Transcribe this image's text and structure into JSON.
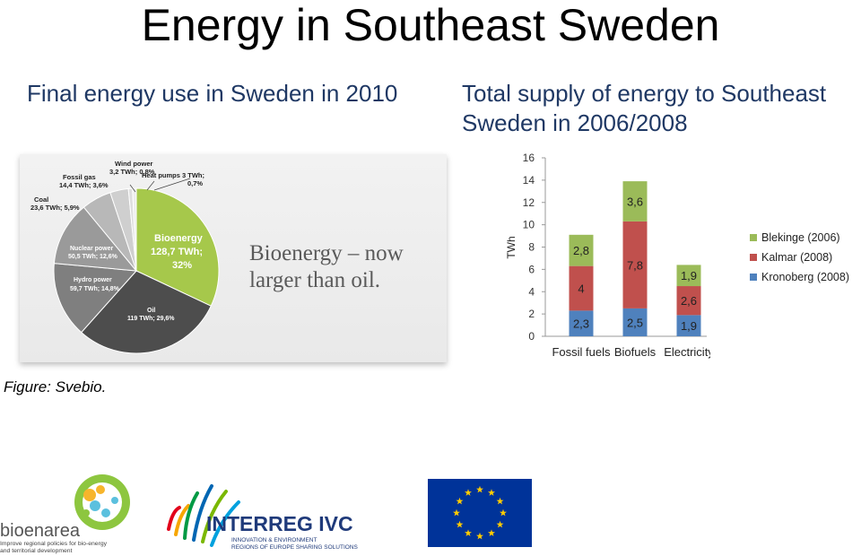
{
  "title": "Energy in Southeast Sweden",
  "left_heading": "Final energy use in Sweden in 2010",
  "right_heading": "Total supply of energy to Southeast Sweden in 2006/2008",
  "pie": {
    "slogan": "Bioenergy – now larger than oil.",
    "labels": {
      "bioenergy_1": "Bioenergy",
      "bioenergy_2": "128,7 TWh;",
      "bioenergy_3": "32%",
      "oil_1": "Oil",
      "oil_2": "119 TWh; 29,6%",
      "hydro_1": "Hydro power",
      "hydro_2": "59,7 TWh; 14,8%",
      "nuclear_1": "Nuclear power",
      "nuclear_2": "50,5 TWh; 12,6%",
      "coal_1": "Coal",
      "coal_2": "23,6 TWh; 5,9%",
      "fossil_gas_1": "Fossil gas",
      "fossil_gas_2": "14,4 TWh; 3,6%",
      "wind_1": "Wind power",
      "wind_2": "3,2 TWh; 0,8%",
      "heat_1": "Heat pumps 3 TWh;",
      "heat_2": "0,7%"
    },
    "slices": [
      {
        "name": "Bioenergy",
        "value": 128.7,
        "color": "#a6c84b"
      },
      {
        "name": "Oil",
        "value": 119,
        "color": "#4d4d4d"
      },
      {
        "name": "Hydro power",
        "value": 59.7,
        "color": "#7f7f7f"
      },
      {
        "name": "Nuclear power",
        "value": 50.5,
        "color": "#9a9a9a"
      },
      {
        "name": "Coal",
        "value": 23.6,
        "color": "#b8b8b8"
      },
      {
        "name": "Fossil gas",
        "value": 14.4,
        "color": "#cfcfcf"
      },
      {
        "name": "Wind power",
        "value": 3.2,
        "color": "#dedede"
      },
      {
        "name": "Heat pumps",
        "value": 3,
        "color": "#ececec"
      }
    ]
  },
  "chart_data": {
    "type": "bar",
    "stacked": true,
    "ylabel": "TWh",
    "ylim": [
      0,
      16
    ],
    "yticks": [
      "0",
      "2",
      "4",
      "6",
      "8",
      "10",
      "12",
      "14",
      "16"
    ],
    "categories": [
      "Fossil fuels",
      "Biofuels",
      "Electricity"
    ],
    "series": [
      {
        "name": "Kronoberg (2008)",
        "color": "#4f81bd",
        "values": [
          2.3,
          2.5,
          1.9
        ],
        "labels": [
          "2,3",
          "2,5",
          "1,9"
        ]
      },
      {
        "name": "Kalmar (2008)",
        "color": "#c0504d",
        "values": [
          4,
          7.8,
          2.6
        ],
        "labels": [
          "4",
          "7,8",
          "2,6"
        ]
      },
      {
        "name": "Blekinge (2006)",
        "color": "#9bbb59",
        "values": [
          2.8,
          3.6,
          1.9
        ],
        "labels": [
          "2,8",
          "3,6",
          "1,9"
        ]
      }
    ],
    "legend_order": [
      "Blekinge (2006)",
      "Kalmar (2008)",
      "Kronoberg (2008)"
    ],
    "legend_position": "right"
  },
  "caption": "Figure: Svebio.",
  "logos": {
    "bioenarea_name": "bioenarea",
    "bioenarea_tagline_1": "Improve regional policies for bio-energy",
    "bioenarea_tagline_2": "and territorial development",
    "interreg_name": "INTERREG IVC",
    "interreg_tagline_1": "INNOVATION & ENVIRONMENT",
    "interreg_tagline_2": "REGIONS OF EUROPE SHARING SOLUTIONS"
  }
}
